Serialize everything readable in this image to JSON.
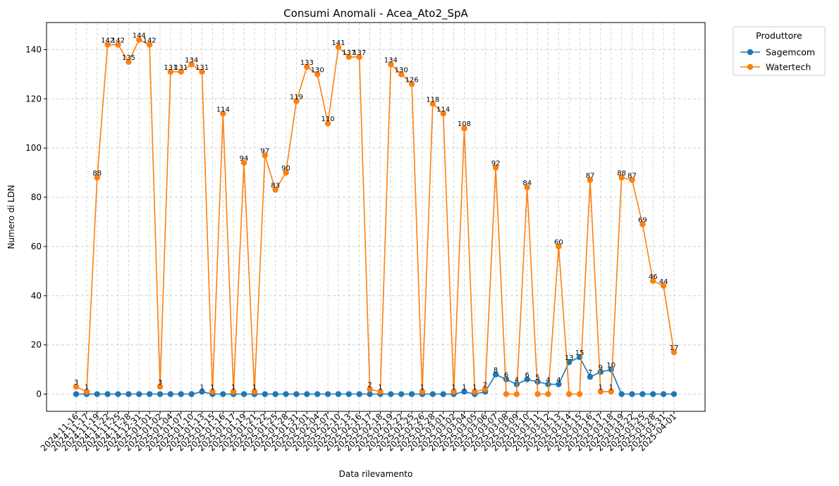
{
  "chart_data": {
    "type": "line",
    "title": "Consumi Anomali - Acea_Ato2_SpA",
    "xlabel": "Data rilevamento",
    "ylabel": "Numero di LDN",
    "ylim": [
      -7,
      151
    ],
    "yticks": [
      0,
      20,
      40,
      60,
      80,
      100,
      120,
      140
    ],
    "grid": true,
    "legend": {
      "title": "Produttore",
      "placement": "outside-top-right"
    },
    "x": [
      "2024-11-16",
      "2024-11-17",
      "2024-11-19",
      "2024-11-22",
      "2024-11-25",
      "2024-11-28",
      "2024-12-31",
      "2025-01-01",
      "2025-01-02",
      "2025-01-04",
      "2025-01-07",
      "2025-01-10",
      "2025-01-13",
      "2025-01-15",
      "2025-01-16",
      "2025-01-17",
      "2025-01-19",
      "2025-01-21",
      "2025-01-22",
      "2025-01-25",
      "2025-01-28",
      "2025-01-31",
      "2025-02-01",
      "2025-02-04",
      "2025-02-07",
      "2025-02-10",
      "2025-02-13",
      "2025-02-16",
      "2025-02-17",
      "2025-02-18",
      "2025-02-19",
      "2025-02-22",
      "2025-02-25",
      "2025-02-26",
      "2025-02-28",
      "2025-03-01",
      "2025-03-02",
      "2025-03-04",
      "2025-03-05",
      "2025-03-06",
      "2025-03-07",
      "2025-03-08",
      "2025-03-09",
      "2025-03-10",
      "2025-03-11",
      "2025-03-12",
      "2025-03-13",
      "2025-03-14",
      "2025-03-15",
      "2025-03-16",
      "2025-03-17",
      "2025-03-18",
      "2025-03-19",
      "2025-03-22",
      "2025-03-25",
      "2025-03-28",
      "2025-03-31",
      "2025-04-01"
    ],
    "series": [
      {
        "name": "Sagemcom",
        "color": "#1f77b4",
        "values": [
          0,
          0,
          0,
          0,
          0,
          0,
          0,
          0,
          0,
          0,
          0,
          0,
          1,
          0,
          0,
          0,
          0,
          0,
          0,
          0,
          0,
          0,
          0,
          0,
          0,
          0,
          0,
          0,
          0,
          0,
          0,
          0,
          0,
          0,
          0,
          0,
          0,
          1,
          0,
          1,
          8,
          6,
          4,
          6,
          5,
          4,
          4,
          13,
          15,
          7,
          9,
          10,
          0,
          0,
          0,
          0,
          0,
          0
        ],
        "labels": [
          null,
          null,
          null,
          null,
          null,
          null,
          null,
          null,
          null,
          null,
          null,
          null,
          "1",
          null,
          null,
          null,
          null,
          null,
          null,
          null,
          null,
          null,
          null,
          null,
          null,
          null,
          null,
          null,
          null,
          null,
          null,
          null,
          null,
          null,
          null,
          null,
          null,
          "1",
          null,
          null,
          "8",
          "6",
          "4",
          "6",
          "5",
          "4",
          "4",
          "13",
          "15",
          "7",
          "9",
          "10",
          null,
          null,
          null,
          null,
          null,
          null
        ]
      },
      {
        "name": "Watertech",
        "color": "#ff7f0e",
        "values": [
          3,
          1,
          88,
          142,
          142,
          135,
          144,
          142,
          3,
          131,
          131,
          134,
          131,
          1,
          114,
          1,
          94,
          1,
          97,
          83,
          90,
          119,
          133,
          130,
          110,
          141,
          137,
          137,
          2,
          1,
          134,
          130,
          126,
          1,
          118,
          114,
          1,
          108,
          1,
          2,
          92,
          0,
          0,
          84,
          0,
          0,
          60,
          0,
          0,
          87,
          1,
          1,
          88,
          87,
          69,
          46,
          44,
          17
        ],
        "labels": [
          "3",
          "1",
          "88",
          "142",
          "142",
          "135",
          "144",
          "142",
          "3",
          "131",
          "131",
          "134",
          "131",
          "1",
          "114",
          "1",
          "94",
          "1",
          "97",
          "83",
          "90",
          "119",
          "133",
          "130",
          "110",
          "141",
          "137",
          "137",
          "2",
          "1",
          "134",
          "130",
          "126",
          "1",
          "118",
          "114",
          "1",
          "108",
          "1",
          "2",
          "92",
          null,
          null,
          "84",
          null,
          null,
          "60",
          null,
          null,
          "87",
          "1",
          "1",
          "88",
          "87",
          "69",
          "46",
          "44",
          "17"
        ]
      }
    ]
  }
}
